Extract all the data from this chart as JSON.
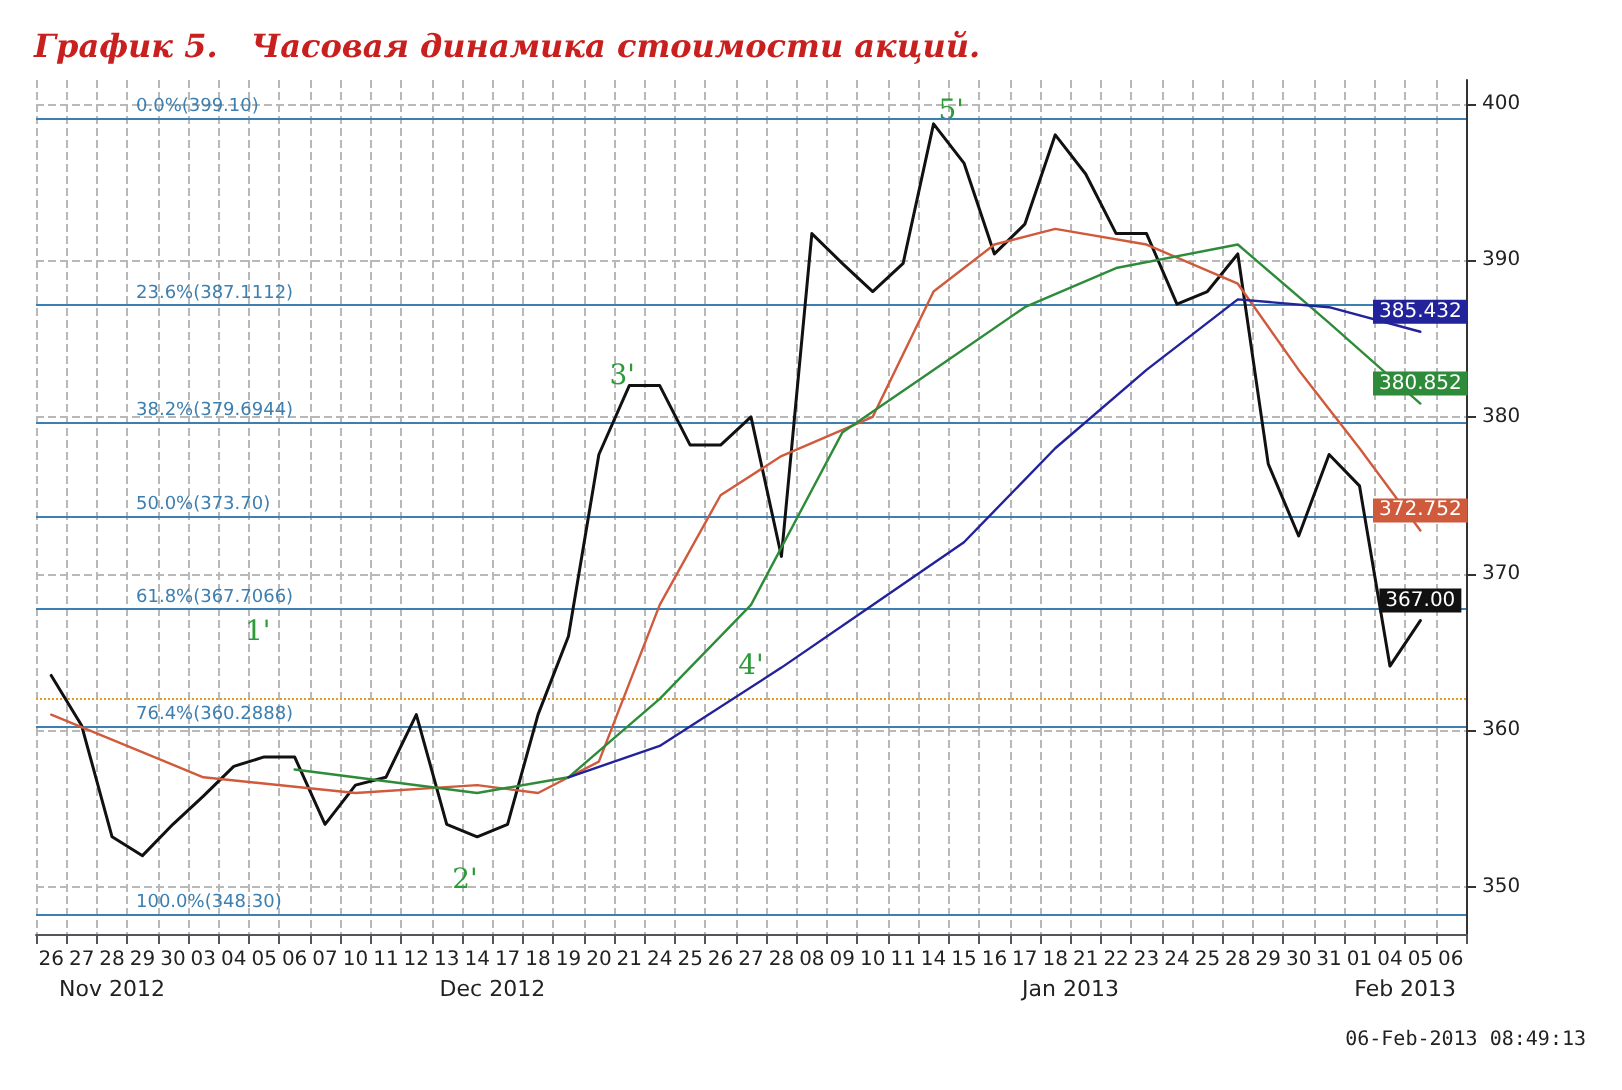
{
  "chart_data": {
    "type": "line",
    "title": "График 5.   Часовая динамика стоимости акций.",
    "categories": [
      "26",
      "27",
      "28",
      "29",
      "30",
      "03",
      "04",
      "05",
      "06",
      "07",
      "10",
      "11",
      "12",
      "13",
      "14",
      "17",
      "18",
      "19",
      "20",
      "21",
      "24",
      "25",
      "26",
      "27",
      "28",
      "08",
      "09",
      "10",
      "11",
      "14",
      "15",
      "16",
      "17",
      "18",
      "21",
      "22",
      "23",
      "24",
      "25",
      "28",
      "29",
      "30",
      "31",
      "01",
      "04",
      "05",
      "06"
    ],
    "series": [
      {
        "color": "#111111",
        "values": [
          363.5,
          360.3,
          353.2,
          352,
          354,
          355.8,
          357.7,
          358.3,
          358.3,
          354,
          356.5,
          357,
          361,
          354,
          353.2,
          354,
          361,
          366,
          377.6,
          382,
          382,
          378.2,
          378.2,
          380,
          371.1,
          391.7,
          389.8,
          388,
          389.8,
          398.7,
          396.2,
          390.4,
          392.3,
          398,
          395.5,
          391.7,
          391.7,
          387.2,
          388,
          390.4,
          377,
          372.4,
          377.6,
          375.6,
          364.1,
          367,
          null
        ],
        "value_labels": [
          null,
          null,
          null,
          null,
          null,
          null,
          null,
          null,
          null,
          null,
          null,
          null,
          null,
          null,
          null,
          null,
          null,
          null,
          null,
          null,
          null,
          null,
          null,
          null,
          null,
          null,
          null,
          null,
          null,
          null,
          null,
          null,
          null,
          null,
          null,
          null,
          null,
          null,
          null,
          null,
          null,
          null,
          null,
          null,
          null,
          "367.00",
          null
        ]
      },
      {
        "color": "#d05a3c",
        "values": [
          361,
          null,
          null,
          null,
          null,
          357,
          null,
          null,
          null,
          null,
          356,
          null,
          null,
          null,
          356.5,
          null,
          356,
          null,
          358,
          null,
          368,
          null,
          375,
          null,
          377.5,
          null,
          null,
          380,
          null,
          388,
          null,
          391,
          null,
          392,
          null,
          null,
          391,
          null,
          null,
          388.5,
          null,
          383,
          null,
          378,
          null,
          372.752,
          null
        ],
        "value_labels": [
          null,
          null,
          null,
          null,
          null,
          null,
          null,
          null,
          null,
          null,
          null,
          null,
          null,
          null,
          null,
          null,
          null,
          null,
          null,
          null,
          null,
          null,
          null,
          null,
          null,
          null,
          null,
          null,
          null,
          null,
          null,
          null,
          null,
          null,
          null,
          null,
          null,
          null,
          null,
          null,
          null,
          null,
          null,
          null,
          null,
          "372.752",
          null
        ]
      },
      {
        "color": "#2e8b3a",
        "values": [
          null,
          null,
          null,
          null,
          null,
          null,
          null,
          null,
          357.5,
          null,
          null,
          null,
          null,
          null,
          356,
          null,
          null,
          357,
          null,
          null,
          362,
          null,
          null,
          368,
          null,
          null,
          379,
          null,
          null,
          383,
          null,
          null,
          387,
          null,
          null,
          389.5,
          null,
          null,
          null,
          391,
          null,
          null,
          386,
          null,
          null,
          380.852,
          null
        ],
        "value_labels": [
          null,
          null,
          null,
          null,
          null,
          null,
          null,
          null,
          null,
          null,
          null,
          null,
          null,
          null,
          null,
          null,
          null,
          null,
          null,
          null,
          null,
          null,
          null,
          null,
          null,
          null,
          null,
          null,
          null,
          null,
          null,
          null,
          null,
          null,
          null,
          null,
          null,
          null,
          null,
          null,
          null,
          null,
          null,
          null,
          null,
          "380.852",
          null
        ]
      },
      {
        "color": "#22229a",
        "values": [
          null,
          null,
          null,
          null,
          null,
          null,
          null,
          null,
          null,
          null,
          null,
          null,
          null,
          null,
          null,
          null,
          null,
          357,
          null,
          null,
          359,
          null,
          null,
          null,
          364,
          null,
          null,
          368,
          null,
          null,
          372,
          null,
          null,
          378,
          null,
          null,
          383,
          null,
          null,
          387.5,
          null,
          null,
          387,
          null,
          null,
          385.432,
          null
        ],
        "value_labels": [
          null,
          null,
          null,
          null,
          null,
          null,
          null,
          null,
          null,
          null,
          null,
          null,
          null,
          null,
          null,
          null,
          null,
          null,
          null,
          null,
          null,
          null,
          null,
          null,
          null,
          null,
          null,
          null,
          null,
          null,
          null,
          null,
          null,
          null,
          null,
          null,
          null,
          null,
          null,
          null,
          null,
          null,
          null,
          null,
          null,
          "385.432",
          null
        ]
      }
    ],
    "ylim": [
      347,
      401.5
    ],
    "yticks": [
      350,
      360,
      370,
      380,
      390,
      400
    ],
    "grid": true,
    "marker": "none",
    "line_style": "solid",
    "ref_lines": [
      {
        "axis": "y",
        "value": 399.1,
        "label": "0.0%(399.10)",
        "color": "#3c7fb0"
      },
      {
        "axis": "y",
        "value": 387.1112,
        "label": "23.6%(387.1112)",
        "color": "#3c7fb0"
      },
      {
        "axis": "y",
        "value": 379.6944,
        "label": "38.2%(379.6944)",
        "color": "#3c7fb0"
      },
      {
        "axis": "y",
        "value": 373.7,
        "label": "50.0%(373.70)",
        "color": "#3c7fb0"
      },
      {
        "axis": "y",
        "value": 367.7066,
        "label": "61.8%(367.7066)",
        "color": "#3c7fb0"
      },
      {
        "axis": "y",
        "value": 360.2888,
        "label": "76.4%(360.2888)",
        "color": "#3c7fb0"
      },
      {
        "axis": "y",
        "value": 348.3,
        "label": "100.0%(348.30)",
        "color": "#3c7fb0"
      },
      {
        "axis": "y",
        "value": 362,
        "color": "#e0a020",
        "line_style": "dotted"
      }
    ],
    "annotations": [
      "Nov 2012",
      "Dec 2012",
      "Jan 2013",
      "Feb 2013",
      "1'",
      "2'",
      "3'",
      "4'",
      "5'",
      "06-Feb-2013 08:49:13"
    ]
  }
}
